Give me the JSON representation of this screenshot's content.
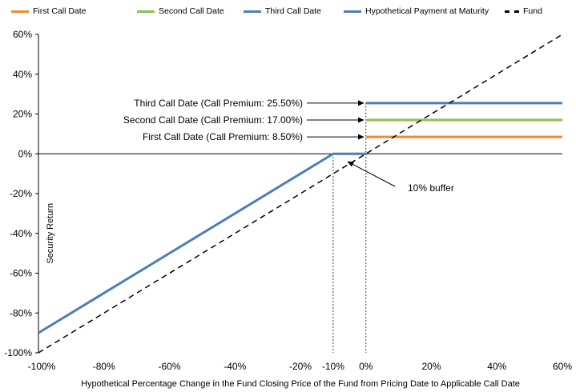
{
  "chart_data": {
    "type": "line",
    "xlabel": "Hypothetical Percentage Change in the Fund Closing Price of the Fund from Pricing Date to Applicable Call Date",
    "ylabel": "Security Return",
    "xlim": [
      -100,
      60
    ],
    "ylim": [
      -100,
      60
    ],
    "x_ticks": [
      -100,
      -80,
      -60,
      -40,
      -20,
      -10,
      0,
      20,
      40,
      60
    ],
    "x_tick_labels": [
      "-100%",
      "-80%",
      "-60%",
      "-40%",
      "-20%",
      "-10%",
      "0%",
      "20%",
      "40%",
      "60%"
    ],
    "y_ticks": [
      -100,
      -80,
      -60,
      -40,
      -20,
      0,
      20,
      40,
      60
    ],
    "y_tick_labels": [
      "-100%",
      "-80%",
      "-60%",
      "-40%",
      "-20%",
      "0%",
      "20%",
      "40%",
      "60%"
    ],
    "grid": false,
    "legend_position": "top",
    "series": [
      {
        "name": "First Call Date",
        "color": "#f28b2c",
        "style": "solid",
        "x": [
          0,
          60
        ],
        "y": [
          8.5,
          8.5
        ]
      },
      {
        "name": "Second Call Date",
        "color": "#8cc152",
        "style": "solid",
        "x": [
          0,
          60
        ],
        "y": [
          17,
          17
        ]
      },
      {
        "name": "Third Call Date",
        "color": "#4a7ebb",
        "style": "solid",
        "x": [
          0,
          60
        ],
        "y": [
          25.5,
          25.5
        ]
      },
      {
        "name": "Hypothetical Payment at Maturity",
        "color": "#4a7ebb",
        "style": "solid",
        "x": [
          -100,
          -10,
          0
        ],
        "y": [
          -90,
          0,
          0
        ]
      },
      {
        "name": "Fund",
        "color": "#000000",
        "style": "dashed",
        "x": [
          -100,
          60
        ],
        "y": [
          -100,
          60
        ]
      }
    ],
    "annotations": [
      {
        "text": "Third Call Date (Call Premium: 25.50%)",
        "x": 0,
        "y": 25.5
      },
      {
        "text": "Second Call Date (Call Premium: 17.00%)",
        "x": 0,
        "y": 17
      },
      {
        "text": "First Call Date (Call Premium: 8.50%)",
        "x": 0,
        "y": 8.5
      },
      {
        "text": "10% buffer",
        "x": -6,
        "y": -4
      }
    ],
    "reference_lines": [
      {
        "x": -10
      },
      {
        "x": 0
      }
    ]
  }
}
